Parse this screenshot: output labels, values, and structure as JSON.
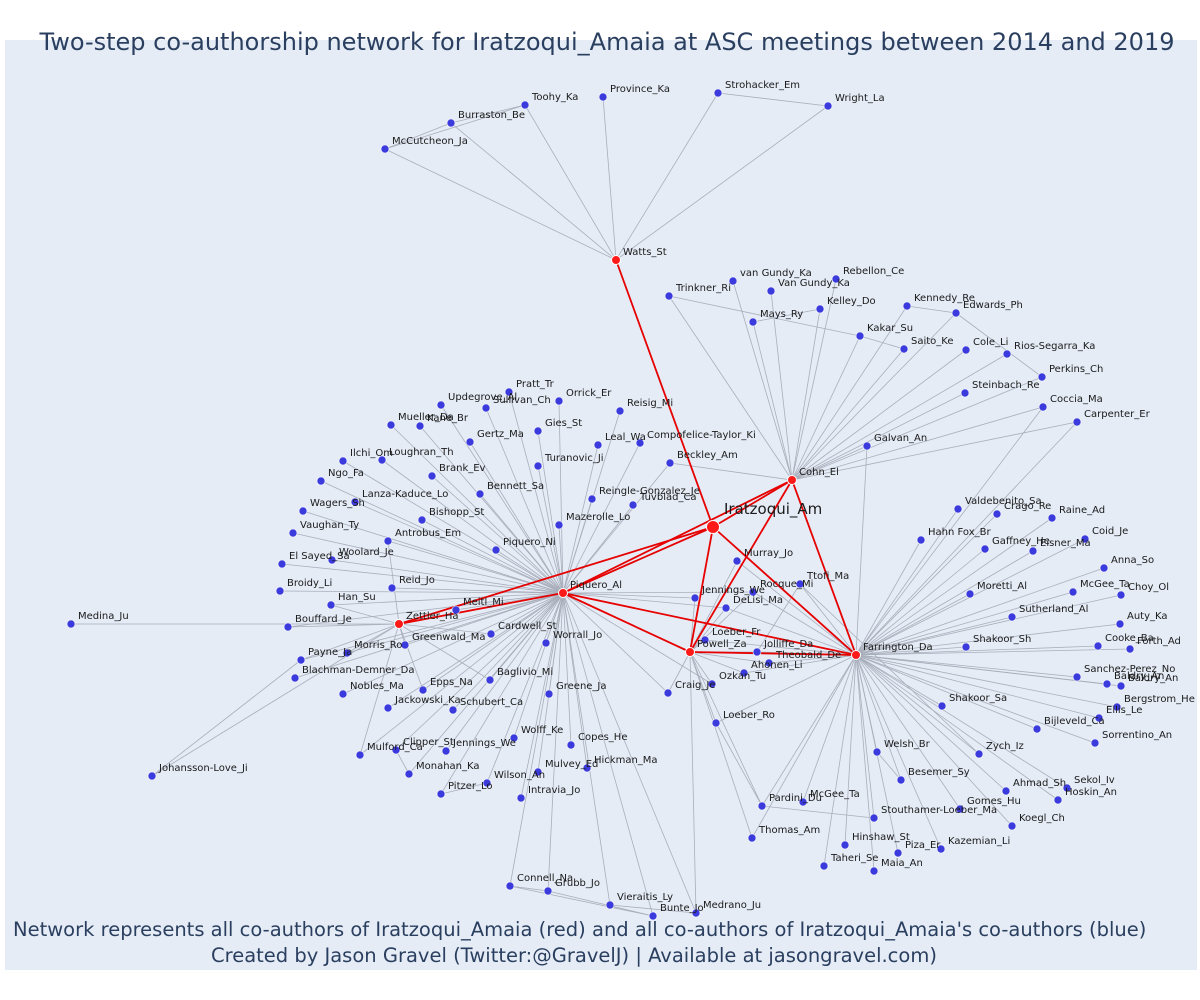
{
  "title": "Two-step co-authorship network for Iratzoqui_Amaia at ASC meetings between 2014 and 2019",
  "footer_line1": "Network represents all co-authors of Iratzoqui_Amaia (red) and all co-authors of Iratzoqui_Amaia's co-authors (blue)",
  "footer_line2": "Created by Jason Gravel (Twitter:@GravelJ) | Available at jasongravel.com)",
  "colors": {
    "background": "#e5ecf6",
    "ego_and_coauthors": "#ff1a1a",
    "second_step": "#3b3bdd",
    "edge_gray": "#a9aebb",
    "edge_red": "#e60000",
    "text": "#2a3f5f"
  },
  "nodes": [
    {
      "id": "Iratzoqui_Am",
      "group": "ego"
    },
    {
      "id": "Watts_St",
      "group": "coauthor"
    },
    {
      "id": "Cohn_El",
      "group": "coauthor"
    },
    {
      "id": "Piquero_Al",
      "group": "coauthor"
    },
    {
      "id": "Zettler_Ha",
      "group": "coauthor"
    },
    {
      "id": "Powell_Za",
      "group": "coauthor"
    },
    {
      "id": "Farrington_Da",
      "group": "coauthor"
    },
    {
      "id": "Province_Ka",
      "group": "second"
    },
    {
      "id": "Toohy_Ka",
      "group": "second"
    },
    {
      "id": "Burraston_Be",
      "group": "second"
    },
    {
      "id": "McCutcheon_Ja",
      "group": "second"
    },
    {
      "id": "Strohacker_Em",
      "group": "second"
    },
    {
      "id": "Wright_La",
      "group": "second"
    },
    {
      "id": "van Gundy_Ka",
      "group": "second"
    },
    {
      "id": "Rebellon_Ce",
      "group": "second"
    },
    {
      "id": "Van Gundy_Ka",
      "group": "second"
    },
    {
      "id": "Trinkner_Ri",
      "group": "second"
    },
    {
      "id": "Kelley_Do",
      "group": "second"
    },
    {
      "id": "Mays_Ry",
      "group": "second"
    },
    {
      "id": "Kennedy_Re",
      "group": "second"
    },
    {
      "id": "Edwards_Ph",
      "group": "second"
    },
    {
      "id": "Kakar_Su",
      "group": "second"
    },
    {
      "id": "Saito_Ke",
      "group": "second"
    },
    {
      "id": "Cole_Li",
      "group": "second"
    },
    {
      "id": "Rios-Segarra_Ka",
      "group": "second"
    },
    {
      "id": "Perkins_Ch",
      "group": "second"
    },
    {
      "id": "Steinbach_Re",
      "group": "second"
    },
    {
      "id": "Coccia_Ma",
      "group": "second"
    },
    {
      "id": "Carpenter_Er",
      "group": "second"
    },
    {
      "id": "Galvan_An",
      "group": "second"
    },
    {
      "id": "Pratt_Tr",
      "group": "second"
    },
    {
      "id": "Updegrove_Al",
      "group": "second"
    },
    {
      "id": "Sullivan_Ch",
      "group": "second"
    },
    {
      "id": "Orrick_Er",
      "group": "second"
    },
    {
      "id": "Mueller_Da",
      "group": "second"
    },
    {
      "id": "Kane_Br",
      "group": "second"
    },
    {
      "id": "Reisig_Mi",
      "group": "second"
    },
    {
      "id": "Gies_St",
      "group": "second"
    },
    {
      "id": "Gertz_Ma",
      "group": "second"
    },
    {
      "id": "Leal_Wa",
      "group": "second"
    },
    {
      "id": "Compofelice-Taylor_Ki",
      "group": "second"
    },
    {
      "id": "Ilchi_Om",
      "group": "second"
    },
    {
      "id": "Loughran_Th",
      "group": "second"
    },
    {
      "id": "Turanovic_Ji",
      "group": "second"
    },
    {
      "id": "Beckley_Am",
      "group": "second"
    },
    {
      "id": "Ngo_Fa",
      "group": "second"
    },
    {
      "id": "Brank_Ev",
      "group": "second"
    },
    {
      "id": "Bennett_Sa",
      "group": "second"
    },
    {
      "id": "Reingle-Gonzalez_Je",
      "group": "second"
    },
    {
      "id": "Tuvblad_Ca",
      "group": "second"
    },
    {
      "id": "Wagers_Sh",
      "group": "second"
    },
    {
      "id": "Lanza-Kaduce_Lo",
      "group": "second"
    },
    {
      "id": "Bishopp_St",
      "group": "second"
    },
    {
      "id": "Mazerolle_Lo",
      "group": "second"
    },
    {
      "id": "Vaughan_Ty",
      "group": "second"
    },
    {
      "id": "Antrobus_Em",
      "group": "second"
    },
    {
      "id": "Piquero_Ni",
      "group": "second"
    },
    {
      "id": "El Sayed_Sa",
      "group": "second"
    },
    {
      "id": "Woolard_Je",
      "group": "second"
    },
    {
      "id": "Murray_Jo",
      "group": "second"
    },
    {
      "id": "Broidy_Li",
      "group": "second"
    },
    {
      "id": "Reid_Jo",
      "group": "second"
    },
    {
      "id": "Han_Su",
      "group": "second"
    },
    {
      "id": "Medina_Ju",
      "group": "second"
    },
    {
      "id": "Bouffard_Je",
      "group": "second"
    },
    {
      "id": "Meitl_Mi",
      "group": "second"
    },
    {
      "id": "Jennings_We",
      "group": "second"
    },
    {
      "id": "DeLisi_Ma",
      "group": "second"
    },
    {
      "id": "Rocque_Mi",
      "group": "second"
    },
    {
      "id": "Ttofi_Ma",
      "group": "second"
    },
    {
      "id": "Cardwell_St",
      "group": "second"
    },
    {
      "id": "Worrall_Jo",
      "group": "second"
    },
    {
      "id": "Morris_Ro",
      "group": "second"
    },
    {
      "id": "Greenwald_Ma",
      "group": "second"
    },
    {
      "id": "Loeber_Fr",
      "group": "second"
    },
    {
      "id": "Jolliffe_Da",
      "group": "second"
    },
    {
      "id": "Payne_Ja",
      "group": "second"
    },
    {
      "id": "Theobald_De",
      "group": "second"
    },
    {
      "id": "Baglivio_Mi",
      "group": "second"
    },
    {
      "id": "Epps_Na",
      "group": "second"
    },
    {
      "id": "Ahonen_Li",
      "group": "second"
    },
    {
      "id": "Blachman-Demner_Da",
      "group": "second"
    },
    {
      "id": "Ozkan_Tu",
      "group": "second"
    },
    {
      "id": "Greene_Ja",
      "group": "second"
    },
    {
      "id": "Nobles_Ma",
      "group": "second"
    },
    {
      "id": "Schubert_Ca",
      "group": "second"
    },
    {
      "id": "Craig_Je",
      "group": "second"
    },
    {
      "id": "Jackowski_Ka",
      "group": "second"
    },
    {
      "id": "Loeber_Ro",
      "group": "second"
    },
    {
      "id": "Wolff_Ke",
      "group": "second"
    },
    {
      "id": "Copes_He",
      "group": "second"
    },
    {
      "id": "Clipper_St",
      "group": "second"
    },
    {
      "id": "Jennings_We2",
      "label": "Jennings_We",
      "group": "second"
    },
    {
      "id": "Mulford_Ca",
      "group": "second"
    },
    {
      "id": "Hickman_Ma",
      "group": "second"
    },
    {
      "id": "Monahan_Ka",
      "group": "second"
    },
    {
      "id": "Mulvey_Ed",
      "group": "second"
    },
    {
      "id": "Johansson-Love_Ji",
      "group": "second"
    },
    {
      "id": "Wilson_An",
      "group": "second"
    },
    {
      "id": "Pitzer_Lo",
      "group": "second"
    },
    {
      "id": "Intravia_Jo",
      "group": "second"
    },
    {
      "id": "Valdebenito_Sa",
      "group": "second"
    },
    {
      "id": "Crago_Re",
      "group": "second"
    },
    {
      "id": "Raine_Ad",
      "group": "second"
    },
    {
      "id": "Coid_Je",
      "group": "second"
    },
    {
      "id": "Hahn Fox_Br",
      "group": "second"
    },
    {
      "id": "Gaffney_He",
      "group": "second"
    },
    {
      "id": "Eisner_Ma",
      "group": "second"
    },
    {
      "id": "Anna_So",
      "group": "second"
    },
    {
      "id": "Moretti_Al",
      "group": "second"
    },
    {
      "id": "McGee_Ta",
      "group": "second"
    },
    {
      "id": "Choy_Ol",
      "group": "second"
    },
    {
      "id": "Sutherland_Al",
      "group": "second"
    },
    {
      "id": "Auty_Ka",
      "group": "second"
    },
    {
      "id": "Shakoor_Sh",
      "group": "second"
    },
    {
      "id": "Cooke_Ba",
      "group": "second"
    },
    {
      "id": "Forth_Ad",
      "group": "second"
    },
    {
      "id": "Sanchez-Perez_No",
      "group": "second"
    },
    {
      "id": "Baldry_An",
      "group": "second"
    },
    {
      "id": "Baldry_An2",
      "label": "Baldry_An",
      "group": "second"
    },
    {
      "id": "Shakoor_Sa",
      "group": "second"
    },
    {
      "id": "Bergstrom_He",
      "group": "second"
    },
    {
      "id": "Bijleveld_Ca",
      "group": "second"
    },
    {
      "id": "Ellis_Le",
      "group": "second"
    },
    {
      "id": "Welsh_Br",
      "group": "second"
    },
    {
      "id": "Zych_Iz",
      "group": "second"
    },
    {
      "id": "Sorrentino_An",
      "group": "second"
    },
    {
      "id": "Besemer_Sy",
      "group": "second"
    },
    {
      "id": "Ahmad_Sh",
      "group": "second"
    },
    {
      "id": "Sekol_Iv",
      "group": "second"
    },
    {
      "id": "Gomes_Hu",
      "group": "second"
    },
    {
      "id": "Hoskin_An",
      "group": "second"
    },
    {
      "id": "Pardini_Du",
      "group": "second"
    },
    {
      "id": "McGee_Ta2",
      "label": "McGee_Ta",
      "group": "second"
    },
    {
      "id": "Stouthamer-Loeber_Ma",
      "group": "second"
    },
    {
      "id": "Koegl_Ch",
      "group": "second"
    },
    {
      "id": "Thomas_Am",
      "group": "second"
    },
    {
      "id": "Hinshaw_St",
      "group": "second"
    },
    {
      "id": "Piza_Er",
      "group": "second"
    },
    {
      "id": "Kazemian_Li",
      "group": "second"
    },
    {
      "id": "Taheri_Se",
      "group": "second"
    },
    {
      "id": "Maia_An",
      "group": "second"
    },
    {
      "id": "Connell_Na",
      "group": "second"
    },
    {
      "id": "Grubb_Jo",
      "group": "second"
    },
    {
      "id": "Vieraitis_Ly",
      "group": "second"
    },
    {
      "id": "Bunte_Jo",
      "group": "second"
    },
    {
      "id": "Medrano_Ju",
      "group": "second"
    }
  ]
}
